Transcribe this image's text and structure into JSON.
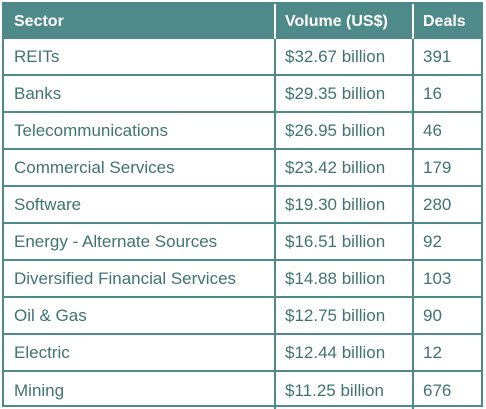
{
  "table": {
    "headers": {
      "sector": "Sector",
      "volume": "Volume (US$)",
      "deals": "Deals"
    },
    "rows": [
      {
        "sector": "REITs",
        "volume": "$32.67 billion",
        "deals": "391"
      },
      {
        "sector": "Banks",
        "volume": "$29.35 billion",
        "deals": "16"
      },
      {
        "sector": "Telecommunications",
        "volume": "$26.95 billion",
        "deals": "46"
      },
      {
        "sector": "Commercial Services",
        "volume": "$23.42 billion",
        "deals": "179"
      },
      {
        "sector": "Software",
        "volume": "$19.30 billion",
        "deals": "280"
      },
      {
        "sector": "Energy - Alternate Sources",
        "volume": "$16.51 billion",
        "deals": "92"
      },
      {
        "sector": "Diversified Financial Services",
        "volume": "$14.88 billion",
        "deals": "103"
      },
      {
        "sector": "Oil & Gas",
        "volume": "$12.75 billion",
        "deals": "90"
      },
      {
        "sector": "Electric",
        "volume": "$12.44 billion",
        "deals": "12"
      },
      {
        "sector": "Mining",
        "volume": "$11.25 billion",
        "deals": "676"
      }
    ]
  },
  "colors": {
    "header_background": "#4f8a8b",
    "text": "#3f7374",
    "border": "#4f8a8b"
  }
}
